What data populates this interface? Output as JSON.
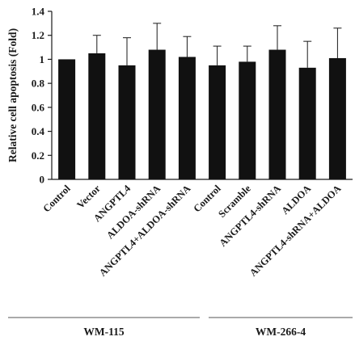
{
  "chart_data": {
    "type": "bar",
    "ylabel": "Relative cell apoptosis (Fold)",
    "ylim": [
      0,
      1.4
    ],
    "yticks": [
      0,
      0.2,
      0.4,
      0.6,
      0.8,
      1,
      1.2,
      1.4
    ],
    "ytick_labels": [
      "0",
      "0.2",
      "0.4",
      "0.6",
      "0.8",
      "1",
      "1.2",
      "1.4"
    ],
    "grid": false,
    "bar_color": "#111111",
    "categories": [
      "Control",
      "Vector",
      "ANGPTL4",
      "ALDOA-shRNA",
      "ANGPTL4+ALDOA-shRNA",
      "Control",
      "Scramble",
      "ANGPTL4-shRNA",
      "ALDOA",
      "ANGPTL4-shRNA+ALDOA"
    ],
    "values": [
      1.0,
      1.05,
      0.95,
      1.08,
      1.02,
      0.95,
      0.98,
      1.08,
      0.93,
      1.01
    ],
    "error": [
      0.0,
      0.15,
      0.23,
      0.22,
      0.17,
      0.16,
      0.13,
      0.2,
      0.22,
      0.25
    ],
    "groups": [
      {
        "name": "WM-115",
        "start": 0,
        "end": 4
      },
      {
        "name": "WM-266-4",
        "start": 5,
        "end": 9
      }
    ]
  }
}
